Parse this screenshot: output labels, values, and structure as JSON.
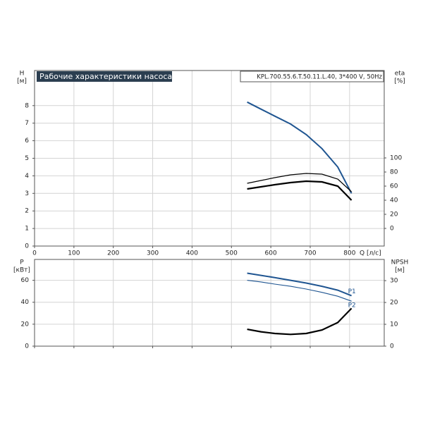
{
  "chart_data": [
    {
      "type": "line",
      "title": "Рабочие характеристики насоса",
      "subtitle": "KPL.700.55.6.T.50.11.L.40, 3*400 V, 50Hz",
      "y_label": "H",
      "y_unit": "[м]",
      "y2_label": "eta",
      "y2_unit": "[%]",
      "x_label": "Q [л/с]",
      "xlim": [
        0,
        888
      ],
      "xticks": [
        0,
        100,
        200,
        300,
        400,
        500,
        600,
        700,
        800
      ],
      "ylim": [
        0,
        10
      ],
      "yticks": [
        0,
        1,
        2,
        3,
        4,
        5,
        6,
        7,
        8
      ],
      "y2lim": [
        -25,
        224
      ],
      "y2ticks": [
        0,
        20,
        40,
        60,
        80,
        100
      ],
      "grid": true,
      "x": [
        540,
        575,
        610,
        650,
        690,
        730,
        770,
        805
      ],
      "series": [
        {
          "color": "#1f5591",
          "width": 2,
          "values": [
            8.2,
            7.8,
            7.4,
            6.95,
            6.35,
            5.55,
            4.5,
            3.0
          ]
        },
        {
          "color": "#000000",
          "width": 1.2,
          "axis": "y2",
          "values": [
            64,
            68,
            72,
            76,
            78,
            77,
            70,
            52
          ]
        },
        {
          "color": "#000000",
          "width": 2.2,
          "axis": "y2",
          "values": [
            56,
            59,
            62,
            65,
            67,
            66,
            60,
            40
          ]
        }
      ]
    },
    {
      "type": "line",
      "y_label": "P",
      "y_unit": "[кВт]",
      "y2_label": "NPSH",
      "y2_unit": "[м]",
      "xlim": [
        0,
        888
      ],
      "ylim": [
        0,
        79
      ],
      "yticks": [
        0,
        20,
        40,
        60
      ],
      "y2lim": [
        0,
        39.7
      ],
      "y2ticks": [
        0,
        10,
        20,
        30
      ],
      "grid": true,
      "x": [
        540,
        575,
        610,
        650,
        690,
        730,
        770,
        805
      ],
      "series": [
        {
          "name": "P1",
          "color": "#1f5591",
          "width": 2,
          "values": [
            66.5,
            64.5,
            62.5,
            60,
            57.5,
            54.5,
            51,
            46
          ]
        },
        {
          "name": "P2",
          "color": "#1f5591",
          "width": 1.1,
          "values": [
            60,
            58.5,
            56.5,
            54.5,
            52,
            49,
            45.5,
            41
          ]
        },
        {
          "color": "#000000",
          "width": 2.2,
          "axis": "y2",
          "values": [
            7.7,
            6.6,
            5.8,
            5.4,
            5.8,
            7.4,
            10.8,
            17.3
          ]
        }
      ]
    }
  ]
}
